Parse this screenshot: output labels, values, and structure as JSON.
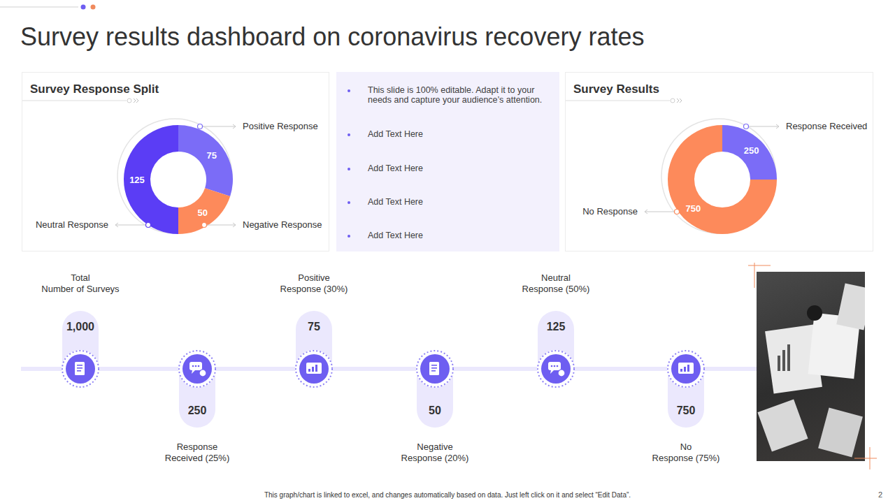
{
  "title": "Survey results dashboard on coronavirus recovery rates",
  "chart_data": [
    {
      "type": "donut",
      "title": "Survey Response Split",
      "categories": [
        "Positive Response",
        "Negative Response",
        "Neutral Response"
      ],
      "values": [
        75,
        50,
        125
      ],
      "colors": [
        "#7b6cf7",
        "#fd8a5b",
        "#5b3df5"
      ],
      "data_labels": true
    },
    {
      "type": "donut",
      "title": "Survey Results",
      "categories": [
        "Response Received",
        "No Response"
      ],
      "values": [
        250,
        750
      ],
      "colors": [
        "#7b6cf7",
        "#fd8a5b"
      ],
      "data_labels": true
    }
  ],
  "text_panel": {
    "items": [
      "This slide is 100% editable. Adapt it to your needs and capture your audience’s attention.",
      "Add Text Here",
      "Add Text Here",
      "Add Text Here",
      "Add Text Here"
    ]
  },
  "timeline": [
    {
      "label": "Total Number of Surveys",
      "value": 1000,
      "value_label": "1,000"
    },
    {
      "label": "Response Received (25%)",
      "value": 250
    },
    {
      "label": "Positive Response (30%)",
      "value": 75
    },
    {
      "label": "Negative Response (20%)",
      "value": 50
    },
    {
      "label": "Neutral Response (50%)",
      "value": 125
    },
    {
      "label": "No Response (75%)",
      "value": 750
    }
  ],
  "footer": "This graph/chart is linked to excel, and changes automatically based on data. Just left click on it and select “Edit Data”.",
  "page_number": 2
}
